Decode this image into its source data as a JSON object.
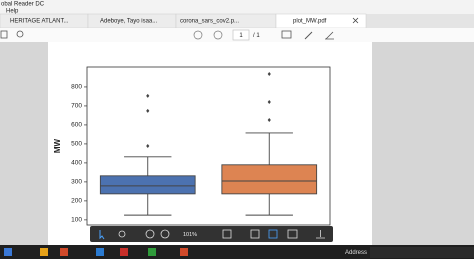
{
  "window": {
    "title": "obal Reader DC",
    "menu": [
      "Help"
    ]
  },
  "tabs": [
    "HERITAGE ATLANT...",
    "Adeboye, Tayo isaa...",
    "corona_sars_cov2.p...",
    "plot_MW.pdf"
  ],
  "toolbar": {
    "page": "1",
    "of": "/ 1"
  },
  "float_toolbar": {
    "zoom": "101%"
  },
  "taskbar": {
    "address": "Address"
  },
  "chart_data": {
    "type": "box",
    "ylabel": "MW",
    "ylim": [
      73,
      905
    ],
    "yticks": [
      100,
      200,
      300,
      400,
      500,
      600,
      700,
      800
    ],
    "boxes": [
      {
        "color": "#4c72b0",
        "min": 125,
        "q1": 237,
        "median": 279,
        "q3": 332,
        "max": 432,
        "outliers": [
          489,
          674,
          753
        ]
      },
      {
        "color": "#dd8452",
        "min": 125,
        "q1": 237,
        "median": 305,
        "q3": 390,
        "max": 558,
        "outliers": [
          626,
          721,
          868
        ]
      }
    ]
  }
}
